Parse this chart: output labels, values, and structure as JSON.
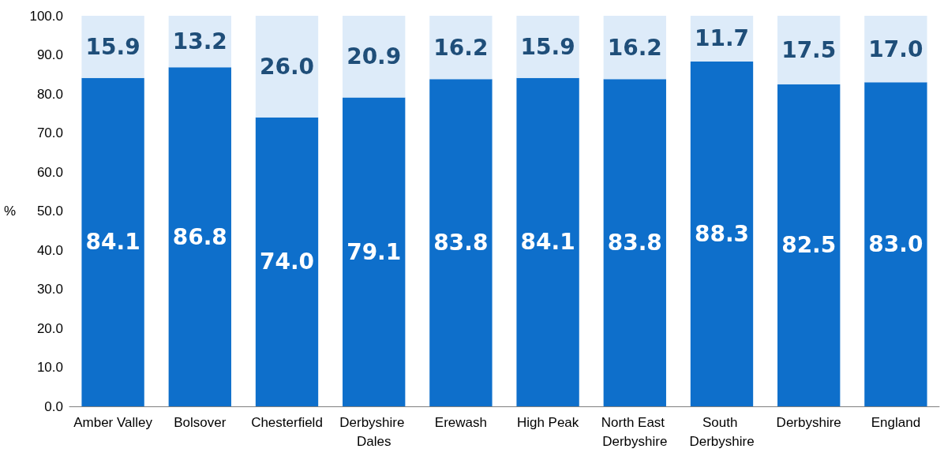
{
  "chart_data": {
    "type": "bar",
    "stacked": true,
    "ylabel": "%",
    "categories": [
      "Amber Valley",
      "Bolsover",
      "Chesterfield",
      "Derbyshire Dales",
      "Erewash",
      "High Peak",
      "North East Derbyshire",
      "South Derbyshire",
      "Derbyshire",
      "England"
    ],
    "series": [
      {
        "color": "#0e6fcb",
        "values": [
          84.1,
          86.8,
          74.0,
          79.1,
          83.8,
          84.1,
          83.8,
          88.3,
          82.5,
          83.0
        ],
        "value_labels": [
          "84.1",
          "86.8",
          "74.0",
          "79.1",
          "83.8",
          "84.1",
          "83.8",
          "88.3",
          "82.5",
          "83.0"
        ]
      },
      {
        "color": "#ddebf9",
        "values": [
          15.9,
          13.2,
          26.0,
          20.9,
          16.2,
          15.9,
          16.2,
          11.7,
          17.5,
          17.0
        ],
        "value_labels": [
          "15.9",
          "13.2",
          "26.0",
          "20.9",
          "16.2",
          "15.9",
          "16.2",
          "11.7",
          "17.5",
          "17.0"
        ]
      }
    ],
    "ylim": [
      0,
      100
    ],
    "yticks": [
      {
        "value": 0,
        "label": "0.0"
      },
      {
        "value": 10,
        "label": "10.0"
      },
      {
        "value": 20,
        "label": "20.0"
      },
      {
        "value": 30,
        "label": "30.0"
      },
      {
        "value": 40,
        "label": "40.0"
      },
      {
        "value": 50,
        "label": "50.0"
      },
      {
        "value": 60,
        "label": "60.0"
      },
      {
        "value": 70,
        "label": "70.0"
      },
      {
        "value": 80,
        "label": "80.0"
      },
      {
        "value": 90,
        "label": "90.0"
      },
      {
        "value": 100,
        "label": "100.0"
      }
    ],
    "grid": false
  }
}
